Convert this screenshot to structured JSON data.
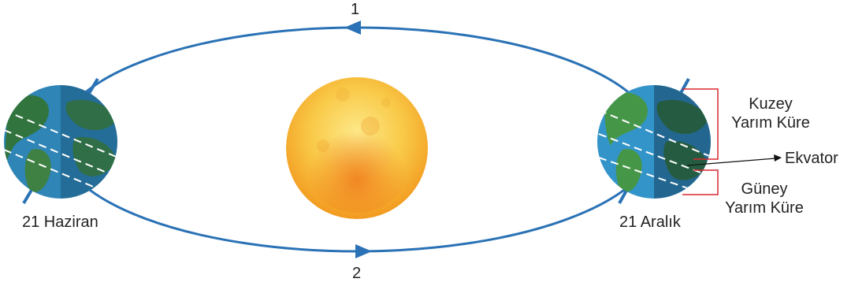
{
  "orbit": {
    "arrow_top_label": "1",
    "arrow_bottom_label": "2",
    "color": "#2a72b5"
  },
  "earth_left": {
    "date_label": "21 Haziran",
    "dark_half": "right"
  },
  "earth_right": {
    "date_label": "21 Aralık",
    "dark_half": "right"
  },
  "annotations": {
    "north_line1": "Kuzey",
    "north_line2": "Yarım Küre",
    "equator": "Ekvator",
    "south_line1": "Güney",
    "south_line2": "Yarım Küre",
    "bracket_color": "#d9272e"
  },
  "sun": {
    "color_outer": "#f7b733",
    "color_inner": "#fbe37a"
  },
  "icons": [
    "sun-icon",
    "earth-icon",
    "orbit-arrow-icon"
  ]
}
